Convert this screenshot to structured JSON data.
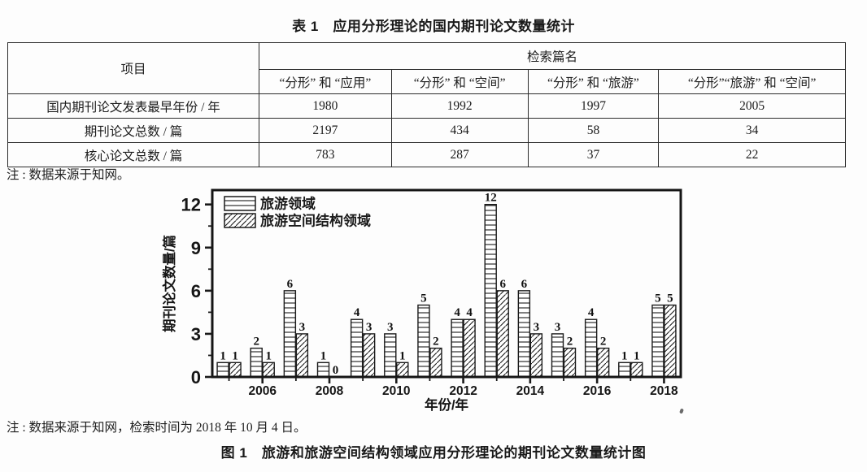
{
  "document": {
    "table_title": "表 1　应用分形理论的国内期刊论文数量统计",
    "table_note": "注 : 数据来源于知网。",
    "figure_note": "注 : 数据来源于知网，检索时间为 2018 年 10 月 4 日。",
    "figure_caption": "图 1　旅游和旅游空间结构领域应用分形理论的期刊论文数量统计图"
  },
  "table": {
    "header": {
      "item_label": "项目",
      "group_label": "检索篇名",
      "columns": [
        "“分形” 和 “应用”",
        "“分形” 和 “空间”",
        "“分形” 和 “旅游”",
        "“分形”“旅游” 和 “空间”"
      ]
    },
    "rows": [
      {
        "label": "国内期刊论文发表最早年份 / 年",
        "values": [
          "1980",
          "1992",
          "1997",
          "2005"
        ]
      },
      {
        "label": "期刊论文总数 / 篇",
        "values": [
          "2197",
          "434",
          "58",
          "34"
        ]
      },
      {
        "label": "核心论文总数 / 篇",
        "values": [
          "783",
          "287",
          "37",
          "22"
        ]
      }
    ]
  },
  "chart_data": {
    "type": "bar",
    "title": "",
    "xlabel": "年份/年",
    "ylabel": "期刊论文数量/篇",
    "x": [
      2005,
      2006,
      2007,
      2008,
      2009,
      2010,
      2011,
      2012,
      2013,
      2014,
      2015,
      2016,
      2017,
      2018
    ],
    "x_labeled_ticks": [
      2006,
      2008,
      2010,
      2012,
      2014,
      2016,
      2018
    ],
    "yticks": [
      0,
      3,
      6,
      9,
      12
    ],
    "ylim": [
      0,
      13
    ],
    "grid": false,
    "legend_position": "top-left",
    "bar_value_labels": true,
    "series": [
      {
        "name": "旅游领域",
        "pattern": "horizontal-stripes",
        "values": [
          1,
          2,
          6,
          1,
          4,
          3,
          5,
          4,
          12,
          6,
          3,
          4,
          1,
          5
        ]
      },
      {
        "name": "旅游空间结构领域",
        "pattern": "diagonal-stripes",
        "values": [
          1,
          1,
          3,
          0,
          3,
          1,
          2,
          4,
          6,
          3,
          2,
          2,
          1,
          5
        ]
      }
    ]
  },
  "colors": {
    "ink": "#1a1a1a",
    "bar_fill": "#ffffff",
    "background": "#fdfdfd"
  }
}
